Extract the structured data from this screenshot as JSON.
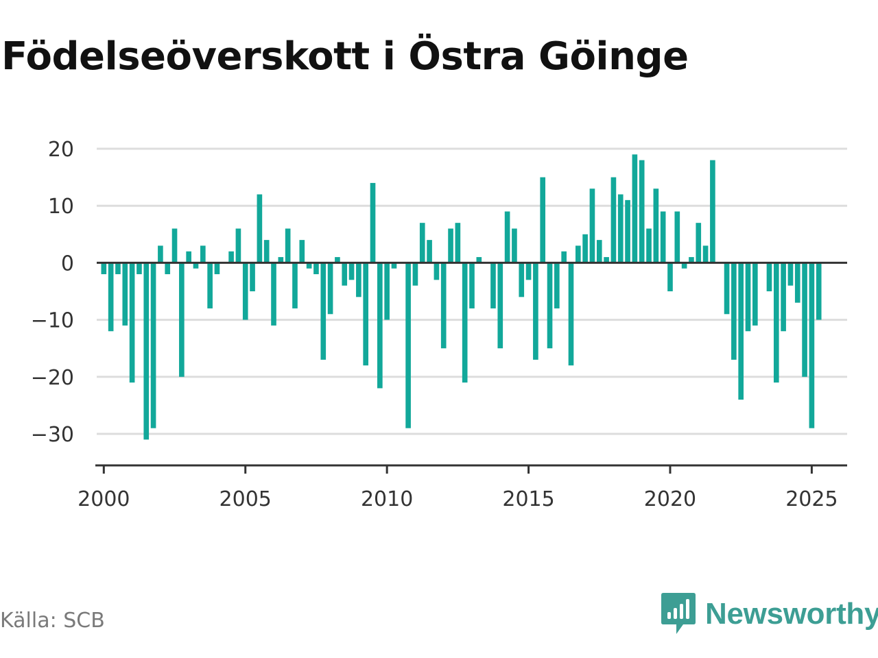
{
  "title": "Födelseöverskott i Östra Göinge",
  "source": "Källa: SCB",
  "logo": {
    "text": "Newsworthy",
    "icon": "newsworthy-chart-bubble-icon"
  },
  "colors": {
    "bar": "#12a89a",
    "grid": "#dddddd",
    "axis": "#333333",
    "logo": "#3d9e94"
  },
  "chart_data": {
    "type": "bar",
    "title": "Födelseöverskott i Östra Göinge",
    "xlabel": "",
    "ylabel": "",
    "ylim": [
      -35,
      20
    ],
    "xlim": [
      1999.75,
      2026.25
    ],
    "yticks": [
      20,
      10,
      0,
      -10,
      -20,
      -30
    ],
    "ytick_labels": [
      "20",
      "10",
      "0",
      "−10",
      "−20",
      "−30"
    ],
    "xticks": [
      2000,
      2005,
      2010,
      2015,
      2020,
      2025
    ],
    "xtick_labels": [
      "2000",
      "2005",
      "2010",
      "2015",
      "2020",
      "2025"
    ],
    "grid": true,
    "legend": "none",
    "frequency": "quarterly",
    "x_start": "2000 Q1",
    "values": [
      -2,
      -12,
      -2,
      -11,
      -21,
      -2,
      -31,
      -29,
      3,
      -2,
      6,
      -20,
      2,
      -1,
      3,
      -8,
      -2,
      0,
      2,
      6,
      -10,
      -5,
      12,
      4,
      -11,
      1,
      6,
      -8,
      4,
      -1,
      -2,
      -17,
      -9,
      1,
      -4,
      -3,
      -6,
      -18,
      14,
      -22,
      -10,
      -1,
      0,
      -29,
      -4,
      7,
      4,
      -3,
      -15,
      6,
      7,
      -21,
      -8,
      1,
      0,
      -8,
      -15,
      9,
      6,
      -6,
      -3,
      -17,
      15,
      -15,
      -8,
      2,
      -18,
      3,
      5,
      13,
      4,
      1,
      15,
      12,
      11,
      19,
      18,
      6,
      13,
      9,
      -5,
      9,
      -1,
      1,
      7,
      3,
      18,
      0,
      -9,
      -17,
      -24,
      -12,
      -11,
      0,
      -5,
      -21,
      -12,
      -4,
      -7,
      -20,
      -29,
      -10
    ]
  }
}
